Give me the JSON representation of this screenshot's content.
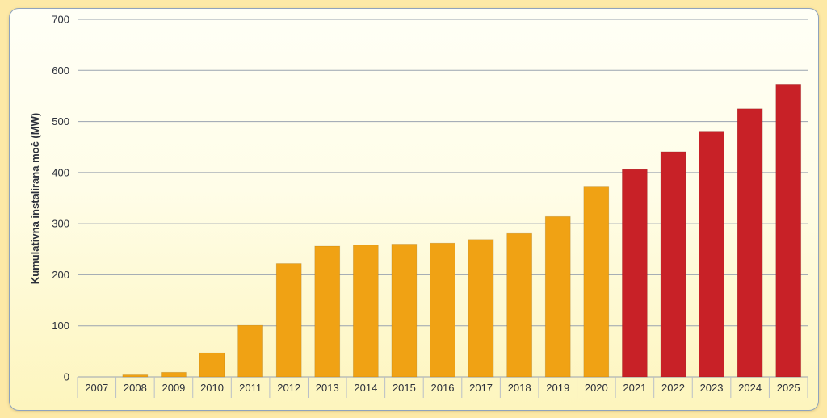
{
  "chart_data": {
    "type": "bar",
    "title": "",
    "xlabel": "",
    "ylabel": "Kumulativna instalirana moč (MW)",
    "ylim": [
      0,
      700
    ],
    "yticks": [
      0,
      100,
      200,
      300,
      400,
      500,
      600,
      700
    ],
    "grid": true,
    "categories": [
      "2007",
      "2008",
      "2009",
      "2010",
      "2011",
      "2012",
      "2013",
      "2014",
      "2015",
      "2016",
      "2017",
      "2018",
      "2019",
      "2020",
      "2021",
      "2022",
      "2023",
      "2024",
      "2025"
    ],
    "values": [
      0,
      4,
      9,
      47,
      101,
      222,
      256,
      258,
      260,
      262,
      269,
      281,
      314,
      372,
      406,
      441,
      481,
      525,
      573
    ],
    "bar_colors": [
      "#f0a214",
      "#f0a214",
      "#f0a214",
      "#f0a214",
      "#f0a214",
      "#f0a214",
      "#f0a214",
      "#f0a214",
      "#f0a214",
      "#f0a214",
      "#f0a214",
      "#f0a214",
      "#f0a214",
      "#f0a214",
      "#c82127",
      "#c82127",
      "#c82127",
      "#c82127",
      "#c82127"
    ]
  }
}
